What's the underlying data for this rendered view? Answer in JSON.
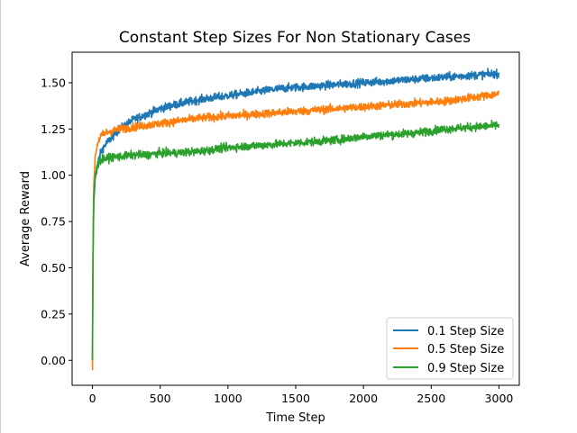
{
  "chart_data": {
    "type": "line",
    "title": "Constant Step Sizes For Non Stationary Cases",
    "xlabel": "Time Step",
    "ylabel": "Average Reward",
    "xlim": [
      -150,
      3150
    ],
    "ylim": [
      -0.135,
      1.665
    ],
    "xticks": [
      0,
      500,
      1000,
      1500,
      2000,
      2500,
      3000
    ],
    "yticks": [
      0.0,
      0.25,
      0.5,
      0.75,
      1.0,
      1.25,
      1.5
    ],
    "xtick_labels": [
      "0",
      "500",
      "1000",
      "1500",
      "2000",
      "2500",
      "3000"
    ],
    "ytick_labels": [
      "0.00",
      "0.25",
      "0.50",
      "0.75",
      "1.00",
      "1.25",
      "1.50"
    ],
    "grid": false,
    "legend_position": "lower-right",
    "series": [
      {
        "name": "0.1 Step Size",
        "color": "#1f77b4",
        "x": [
          0,
          2,
          5,
          10,
          20,
          40,
          60,
          80,
          100,
          150,
          200,
          300,
          400,
          500,
          600,
          800,
          1000,
          1200,
          1400,
          1600,
          1800,
          2000,
          2200,
          2400,
          2600,
          2800,
          3000
        ],
        "y": [
          0.0,
          0.3,
          0.6,
          0.85,
          0.98,
          1.07,
          1.12,
          1.15,
          1.17,
          1.21,
          1.25,
          1.3,
          1.33,
          1.36,
          1.38,
          1.41,
          1.43,
          1.45,
          1.47,
          1.48,
          1.49,
          1.5,
          1.51,
          1.52,
          1.53,
          1.54,
          1.55
        ],
        "noise": 0.022
      },
      {
        "name": "0.5 Step Size",
        "color": "#ff7f0e",
        "x": [
          0,
          2,
          5,
          10,
          20,
          40,
          60,
          80,
          100,
          150,
          200,
          300,
          400,
          500,
          600,
          800,
          1000,
          1200,
          1400,
          1600,
          1800,
          2000,
          2200,
          2400,
          2600,
          2800,
          3000
        ],
        "y": [
          -0.05,
          0.3,
          0.7,
          0.95,
          1.1,
          1.18,
          1.21,
          1.22,
          1.23,
          1.24,
          1.25,
          1.26,
          1.27,
          1.28,
          1.29,
          1.31,
          1.32,
          1.33,
          1.34,
          1.35,
          1.36,
          1.37,
          1.38,
          1.39,
          1.4,
          1.42,
          1.44
        ],
        "noise": 0.022
      },
      {
        "name": "0.9 Step Size",
        "color": "#2ca02c",
        "x": [
          0,
          2,
          5,
          10,
          20,
          40,
          60,
          80,
          100,
          150,
          200,
          300,
          400,
          500,
          600,
          800,
          1000,
          1200,
          1400,
          1600,
          1800,
          2000,
          2200,
          2400,
          2600,
          2800,
          3000
        ],
        "y": [
          0.0,
          0.3,
          0.65,
          0.88,
          1.0,
          1.06,
          1.08,
          1.09,
          1.09,
          1.1,
          1.1,
          1.11,
          1.11,
          1.12,
          1.12,
          1.13,
          1.15,
          1.16,
          1.17,
          1.18,
          1.19,
          1.21,
          1.22,
          1.23,
          1.25,
          1.26,
          1.27
        ],
        "noise": 0.022
      }
    ]
  }
}
